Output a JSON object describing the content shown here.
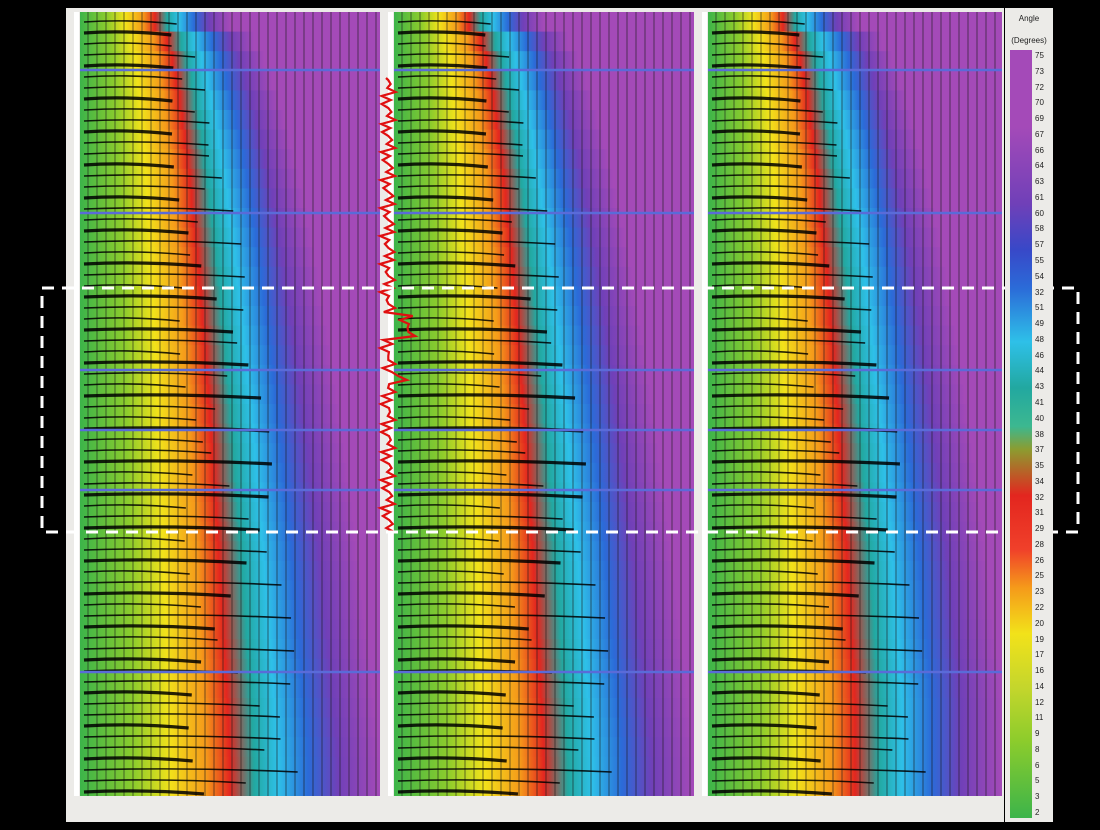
{
  "legend": {
    "title": "Angle",
    "unit": "(Degrees)",
    "ticks": [
      "75",
      "73",
      "72",
      "70",
      "69",
      "67",
      "66",
      "64",
      "63",
      "61",
      "60",
      "58",
      "57",
      "55",
      "54",
      "32",
      "51",
      "49",
      "48",
      "46",
      "44",
      "43",
      "41",
      "40",
      "38",
      "37",
      "35",
      "34",
      "32",
      "31",
      "29",
      "28",
      "26",
      "25",
      "23",
      "22",
      "20",
      "19",
      "17",
      "16",
      "14",
      "12",
      "11",
      "9",
      "8",
      "6",
      "5",
      "3",
      "2"
    ]
  },
  "colors": {
    "background": "#000000",
    "panel": "#ecebe8",
    "highlight_box": "#ffffff",
    "well_log": "#e01010",
    "horizon": "#5a6bd8"
  },
  "gathers": {
    "count": 3
  }
}
